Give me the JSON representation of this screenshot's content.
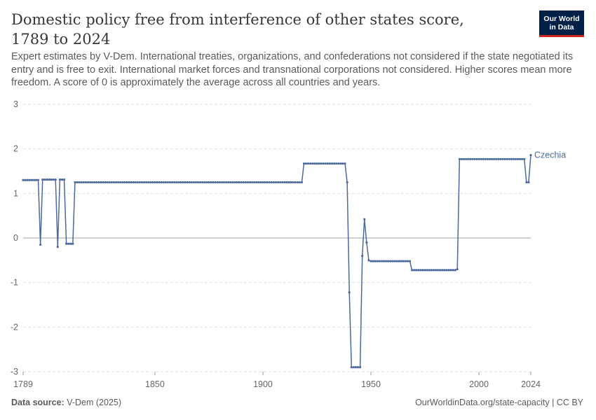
{
  "header": {
    "title": "Domestic policy free from interference of other states score, 1789 to 2024",
    "subtitle": "Expert estimates by V-Dem. International treaties, organizations, and confederations not considered if the state negotiated its entry and is free to exit. International market forces and transnational corporations not considered. Higher scores mean more freedom. A score of 0 is approximately the average across all countries and years.",
    "logo_line1": "Our World",
    "logo_line2": "in Data"
  },
  "footer": {
    "source_label": "Data source:",
    "source_value": "V-Dem (2025)",
    "link": "OurWorldinData.org/state-capacity | CC BY"
  },
  "colors": {
    "series": "#4c6a9c",
    "grid": "#dddddd",
    "zero_line": "#a0a0a0",
    "logo_bg": "#002147",
    "logo_accent": "#ce261e"
  },
  "chart_data": {
    "type": "line",
    "title": "Domestic policy free from interference of other states score, 1789 to 2024",
    "xlabel": "",
    "ylabel": "",
    "xlim": [
      1789,
      2024
    ],
    "ylim": [
      -3,
      3
    ],
    "x_ticks": [
      "1789",
      "1850",
      "1900",
      "1950",
      "2000",
      "2024"
    ],
    "y_ticks": [
      "3",
      "2",
      "1",
      "0",
      "-1",
      "-2",
      "-3"
    ],
    "grid": "horizontal dashed",
    "series": [
      {
        "name": "Czechia",
        "points": [
          [
            1789,
            1.3
          ],
          [
            1796,
            1.3
          ],
          [
            1797,
            -0.15
          ],
          [
            1798,
            1.31
          ],
          [
            1804,
            1.31
          ],
          [
            1805,
            -0.2
          ],
          [
            1806,
            1.31
          ],
          [
            1808,
            1.31
          ],
          [
            1809,
            -0.13
          ],
          [
            1812,
            -0.13
          ],
          [
            1813,
            1.25
          ],
          [
            1918,
            1.25
          ],
          [
            1919,
            1.67
          ],
          [
            1938,
            1.67
          ],
          [
            1939,
            1.25
          ],
          [
            1940,
            -1.22
          ],
          [
            1941,
            -2.9
          ],
          [
            1945,
            -2.9
          ],
          [
            1946,
            -0.4
          ],
          [
            1947,
            0.42
          ],
          [
            1948,
            -0.1
          ],
          [
            1949,
            -0.5
          ],
          [
            1950,
            -0.52
          ],
          [
            1968,
            -0.52
          ],
          [
            1969,
            -0.72
          ],
          [
            1989,
            -0.72
          ],
          [
            1990,
            -0.7
          ],
          [
            1991,
            1.77
          ],
          [
            2021,
            1.77
          ],
          [
            2022,
            1.25
          ],
          [
            2023,
            1.25
          ],
          [
            2024,
            1.86
          ]
        ]
      }
    ]
  }
}
